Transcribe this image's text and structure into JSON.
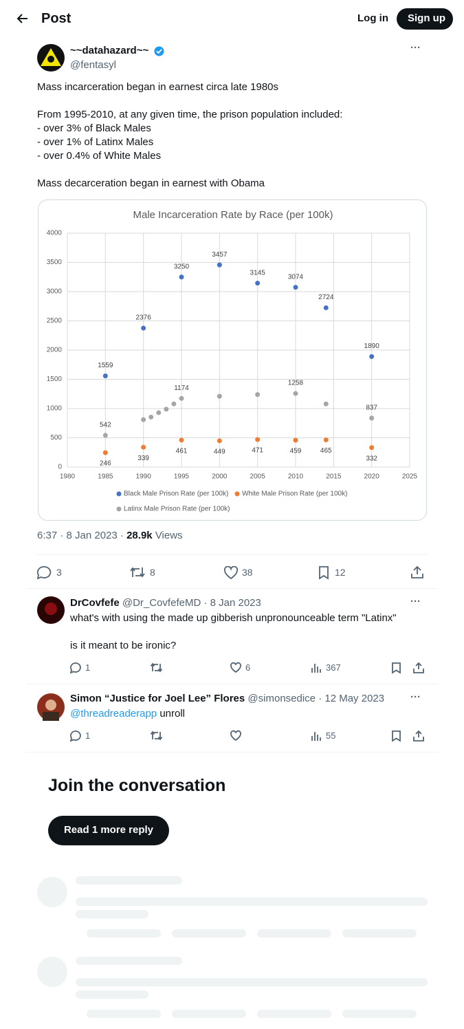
{
  "header": {
    "title": "Post",
    "login": "Log in",
    "signup": "Sign up"
  },
  "post": {
    "name": "~~datahazard~~",
    "handle": "@fentasyl",
    "paragraphs": [
      [
        "Mass incarceration began in earnest circa late 1980s"
      ],
      [
        "From 1995-2010, at any given time, the prison population included:",
        "- over 3% of Black Males",
        "- over 1% of Latinx Males",
        "- over 0.4% of White Males"
      ],
      [
        "Mass decarceration began in earnest with Obama"
      ]
    ],
    "time": "6:37 · 8 Jan 2023 ·",
    "views_count": "28.9k",
    "views_label": "Views",
    "replies": "3",
    "reposts": "8",
    "likes": "38",
    "bookmarks": "12"
  },
  "chart_data": {
    "type": "scatter",
    "title": "Male Incarceration Rate by Race (per 100k)",
    "xlim": [
      1980,
      2025
    ],
    "xticks": [
      1980,
      1985,
      1990,
      1995,
      2000,
      2005,
      2010,
      2015,
      2020,
      2025
    ],
    "ylim": [
      0,
      4000
    ],
    "yticks": [
      0,
      500,
      1000,
      1500,
      2000,
      2500,
      3000,
      3500,
      4000
    ],
    "grid": true,
    "legend": "bottom",
    "series": [
      {
        "name": "Black Male Prison Rate (per 100k)",
        "color": "#4472c4",
        "x": [
          1985,
          1990,
          1995,
          2000,
          2005,
          2010,
          2014,
          2020
        ],
        "values": [
          1559,
          2376,
          3250,
          3457,
          3145,
          3074,
          2724,
          1890
        ]
      },
      {
        "name": "White Male Prison Rate (per 100k)",
        "color": "#ed7d31",
        "x": [
          1985,
          1990,
          1995,
          2000,
          2005,
          2010,
          2014,
          2020
        ],
        "values": [
          246,
          339,
          461,
          449,
          471,
          459,
          465,
          332
        ]
      },
      {
        "name": "Latinx Male Prison Rate (per 100k)",
        "color": "#a5a5a5",
        "x": [
          1985,
          1990,
          1991,
          1992,
          1993,
          1994,
          1995,
          2000,
          2005,
          2010,
          2014,
          2020
        ],
        "values": [
          542,
          810,
          855,
          930,
          990,
          1080,
          1174,
          1210,
          1240,
          1258,
          1080,
          837
        ],
        "value_labels": [
          "542",
          null,
          null,
          null,
          null,
          null,
          "1174",
          null,
          null,
          "1258",
          null,
          "837"
        ]
      }
    ]
  },
  "replies": [
    {
      "name": "DrCovfefe",
      "handle": "@Dr_CovfefeMD",
      "date": "· 8 Jan 2023",
      "paragraphs": [
        [
          "what's with using the made up gibberish unpronounceable term \"Latinx\""
        ],
        [
          "is it meant to be ironic?"
        ]
      ],
      "replies": "1",
      "likes": "6",
      "views": "367"
    },
    {
      "name": "Simon “Justice for Joel Lee” Flores",
      "handle": "@simonsedice",
      "date": "· 12 May 2023",
      "mention": "@threadreaderapp",
      "text": "unroll",
      "replies": "1",
      "views": "55"
    }
  ],
  "join": {
    "title": "Join the conversation",
    "button": "Read 1 more reply"
  }
}
